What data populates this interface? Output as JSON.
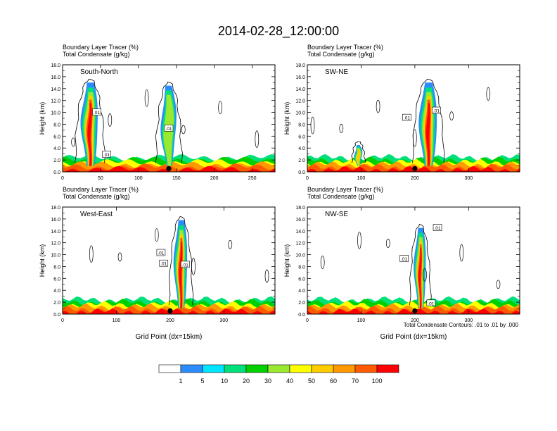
{
  "title": "2014-02-28_12:00:00",
  "palette": [
    "#ffffff",
    "#2b8cff",
    "#00e5ff",
    "#00e07a",
    "#00d000",
    "#9be830",
    "#ffff00",
    "#ffcc00",
    "#ff9900",
    "#ff5a00",
    "#ff0000"
  ],
  "chart_data": [
    {
      "type": "heatmap",
      "name": "South-North",
      "line1": "Boundary Layer Tracer   (%)",
      "line2": "Total Condensate   (g/kg)",
      "ylabel": "Height (km)",
      "xlabel": "",
      "xlim": [
        0,
        280
      ],
      "ylim": [
        0,
        18
      ],
      "xticks": [
        0,
        50,
        100,
        150,
        200,
        250
      ],
      "yticks": [
        "0.0",
        "2.0",
        "4.0",
        "6.0",
        "8.0",
        "10.0",
        "12.0",
        "14.0",
        "16.0",
        "18.0"
      ],
      "plumes": [
        {
          "x": 36,
          "ytop": 15.0,
          "w": 8,
          "peak": 100
        },
        {
          "x": 140,
          "ytop": 14.5,
          "w": 7,
          "peak": 40
        }
      ],
      "contour_labels": [
        {
          "x": 45,
          "y": 10.0,
          "text": ".01"
        },
        {
          "x": 58,
          "y": 2.9,
          "text": ".01"
        },
        {
          "x": 140,
          "y": 7.3,
          "text": ".01"
        }
      ],
      "marker_x": 140
    },
    {
      "type": "heatmap",
      "name": "SW-NE",
      "line1": "Boundary Layer Tracer   (%)",
      "line2": "Total Condensate   (g/kg)",
      "ylabel": "Height (km)",
      "xlabel": "",
      "xlim": [
        0,
        395
      ],
      "ylim": [
        0,
        18
      ],
      "xticks": [
        0,
        100,
        200,
        300
      ],
      "yticks": [
        "0.0",
        "2.0",
        "4.0",
        "6.0",
        "8.0",
        "10.0",
        "12.0",
        "14.0",
        "16.0",
        "18.0"
      ],
      "plumes": [
        {
          "x": 225,
          "ytop": 15.0,
          "w": 12,
          "peak": 100
        },
        {
          "x": 95,
          "ytop": 4.5,
          "w": 5,
          "peak": 60
        }
      ],
      "contour_labels": [
        {
          "x": 185,
          "y": 9.1,
          "text": ".01"
        },
        {
          "x": 240,
          "y": 10.3,
          "text": ".01"
        }
      ],
      "marker_x": 200
    },
    {
      "type": "heatmap",
      "name": "West-East",
      "line1": "Boundary Layer Tracer   (%)",
      "line2": "Total Condensate   (g/kg)",
      "ylabel": "Height (km)",
      "xlabel": "Grid Point (dx=15km)",
      "xlim": [
        0,
        395
      ],
      "ylim": [
        0,
        18
      ],
      "xticks": [
        0,
        100,
        200,
        300
      ],
      "yticks": [
        "0.0",
        "2.0",
        "4.0",
        "6.0",
        "8.0",
        "10.0",
        "12.0",
        "14.0",
        "16.0",
        "18.0"
      ],
      "plumes": [
        {
          "x": 220,
          "ytop": 15.8,
          "w": 9,
          "peak": 100
        }
      ],
      "contour_labels": [
        {
          "x": 183,
          "y": 10.3,
          "text": ".01"
        },
        {
          "x": 188,
          "y": 8.5,
          "text": ".01"
        },
        {
          "x": 228,
          "y": 8.3,
          "text": ".01"
        }
      ],
      "marker_x": 200
    },
    {
      "type": "heatmap",
      "name": "NW-SE",
      "line1": "Boundary Layer Tracer   (%)",
      "line2": "Total Condensate   (g/kg)",
      "ylabel": "Height (km)",
      "xlabel": "Grid Point (dx=15km)",
      "xlim": [
        0,
        395
      ],
      "ylim": [
        0,
        18
      ],
      "xticks": [
        0,
        100,
        200,
        300
      ],
      "yticks": [
        "0.0",
        "2.0",
        "4.0",
        "6.0",
        "8.0",
        "10.0",
        "12.0",
        "14.0",
        "16.0",
        "18.0"
      ],
      "plumes": [
        {
          "x": 210,
          "ytop": 14.5,
          "w": 8,
          "peak": 100
        }
      ],
      "contour_labels": [
        {
          "x": 242,
          "y": 14.5,
          "text": ".01"
        },
        {
          "x": 180,
          "y": 9.3,
          "text": ".01"
        },
        {
          "x": 230,
          "y": 1.8,
          "text": ".01"
        }
      ],
      "marker_x": 200
    }
  ],
  "contour_note": "Total Condensate Contours: .01 to .01 by .000",
  "colorbar": {
    "labels": [
      "1",
      "5",
      "10",
      "20",
      "30",
      "40",
      "50",
      "60",
      "70",
      "100"
    ]
  }
}
